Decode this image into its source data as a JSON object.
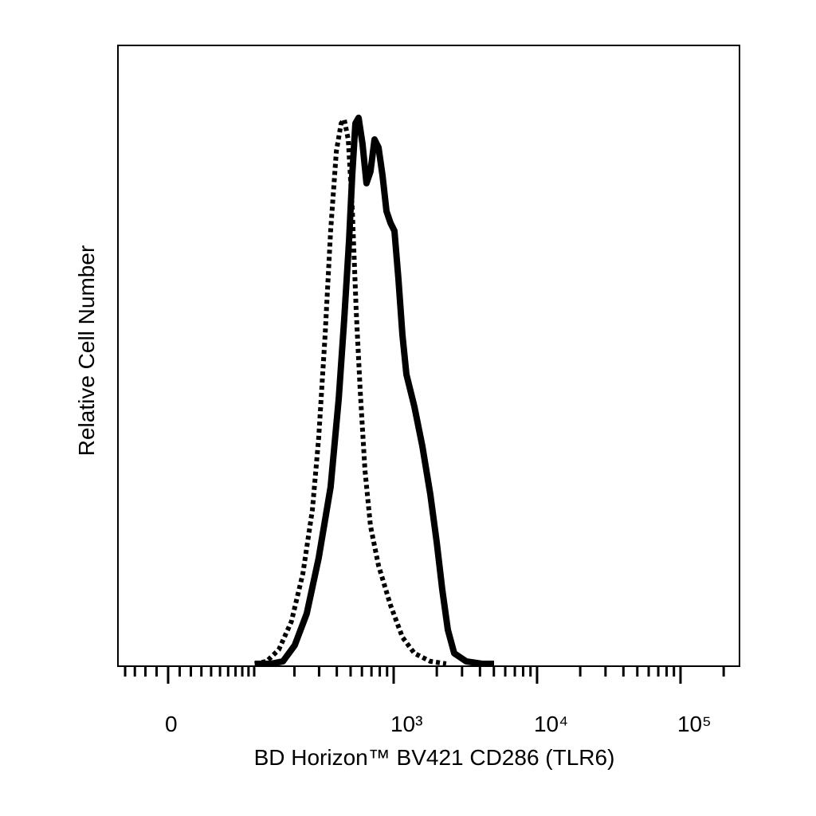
{
  "chart_data": {
    "type": "line",
    "xlabel": "BD Horizon™ BV421 CD286 (TLR6)",
    "ylabel": "Relative Cell Number",
    "xscale": "biexponential",
    "xlim": [
      -48,
      257800
    ],
    "ylim": [
      0,
      100
    ],
    "xticks": [
      0,
      {
        "value": 1000,
        "label": "10³"
      },
      {
        "value": 10000,
        "label": "10⁴"
      },
      {
        "value": 100000,
        "label": "10⁵"
      }
    ],
    "xminorticks": [
      -40,
      -30,
      -20,
      -10,
      10,
      20,
      30,
      40,
      50,
      60,
      70,
      80,
      90,
      100,
      200,
      300,
      400,
      500,
      600,
      700,
      800,
      900,
      2000,
      3000,
      4000,
      5000,
      6000,
      7000,
      8000,
      9000,
      20000,
      30000,
      40000,
      50000,
      60000,
      70000,
      80000,
      90000,
      200000
    ],
    "series": [
      {
        "color": "#000000",
        "line_style": "dotted",
        "x": [
          101,
          125,
          154,
          190,
          230,
          269,
          298,
          331,
          362,
          397,
          429,
          451,
          481,
          513,
          547,
          584,
          630,
          689,
          784,
          950,
          1151,
          1395,
          1803,
          2326
        ],
        "values": [
          0,
          0.4,
          2.3,
          6.8,
          14.6,
          24.9,
          36.5,
          53.2,
          70.0,
          82.9,
          87.4,
          88.0,
          84.8,
          73.8,
          57.1,
          44.2,
          31.3,
          22.3,
          15.9,
          9.5,
          4.3,
          1.7,
          0.4,
          0
        ]
      },
      {
        "color": "#000000",
        "line_style": "solid",
        "x": [
          101,
          134,
          165,
          201,
          245,
          298,
          362,
          413,
          451,
          488,
          513,
          540,
          569,
          606,
          646,
          689,
          735,
          784,
          836,
          891,
          950,
          1013,
          1080,
          1151,
          1227,
          1395,
          1586,
          1803,
          1996,
          2183,
          2387,
          2645,
          3205,
          4138,
          5017
        ],
        "values": [
          0,
          0,
          0.4,
          3.0,
          8.1,
          17.1,
          28.6,
          42.9,
          55.8,
          68.6,
          79.0,
          87.4,
          88.3,
          84.1,
          77.7,
          79.6,
          84.8,
          83.5,
          79.0,
          73.2,
          71.3,
          70.0,
          62.2,
          53.2,
          46.8,
          41.6,
          35.2,
          27.4,
          19.7,
          12.0,
          5.5,
          1.7,
          0.4,
          0,
          0
        ]
      }
    ]
  }
}
